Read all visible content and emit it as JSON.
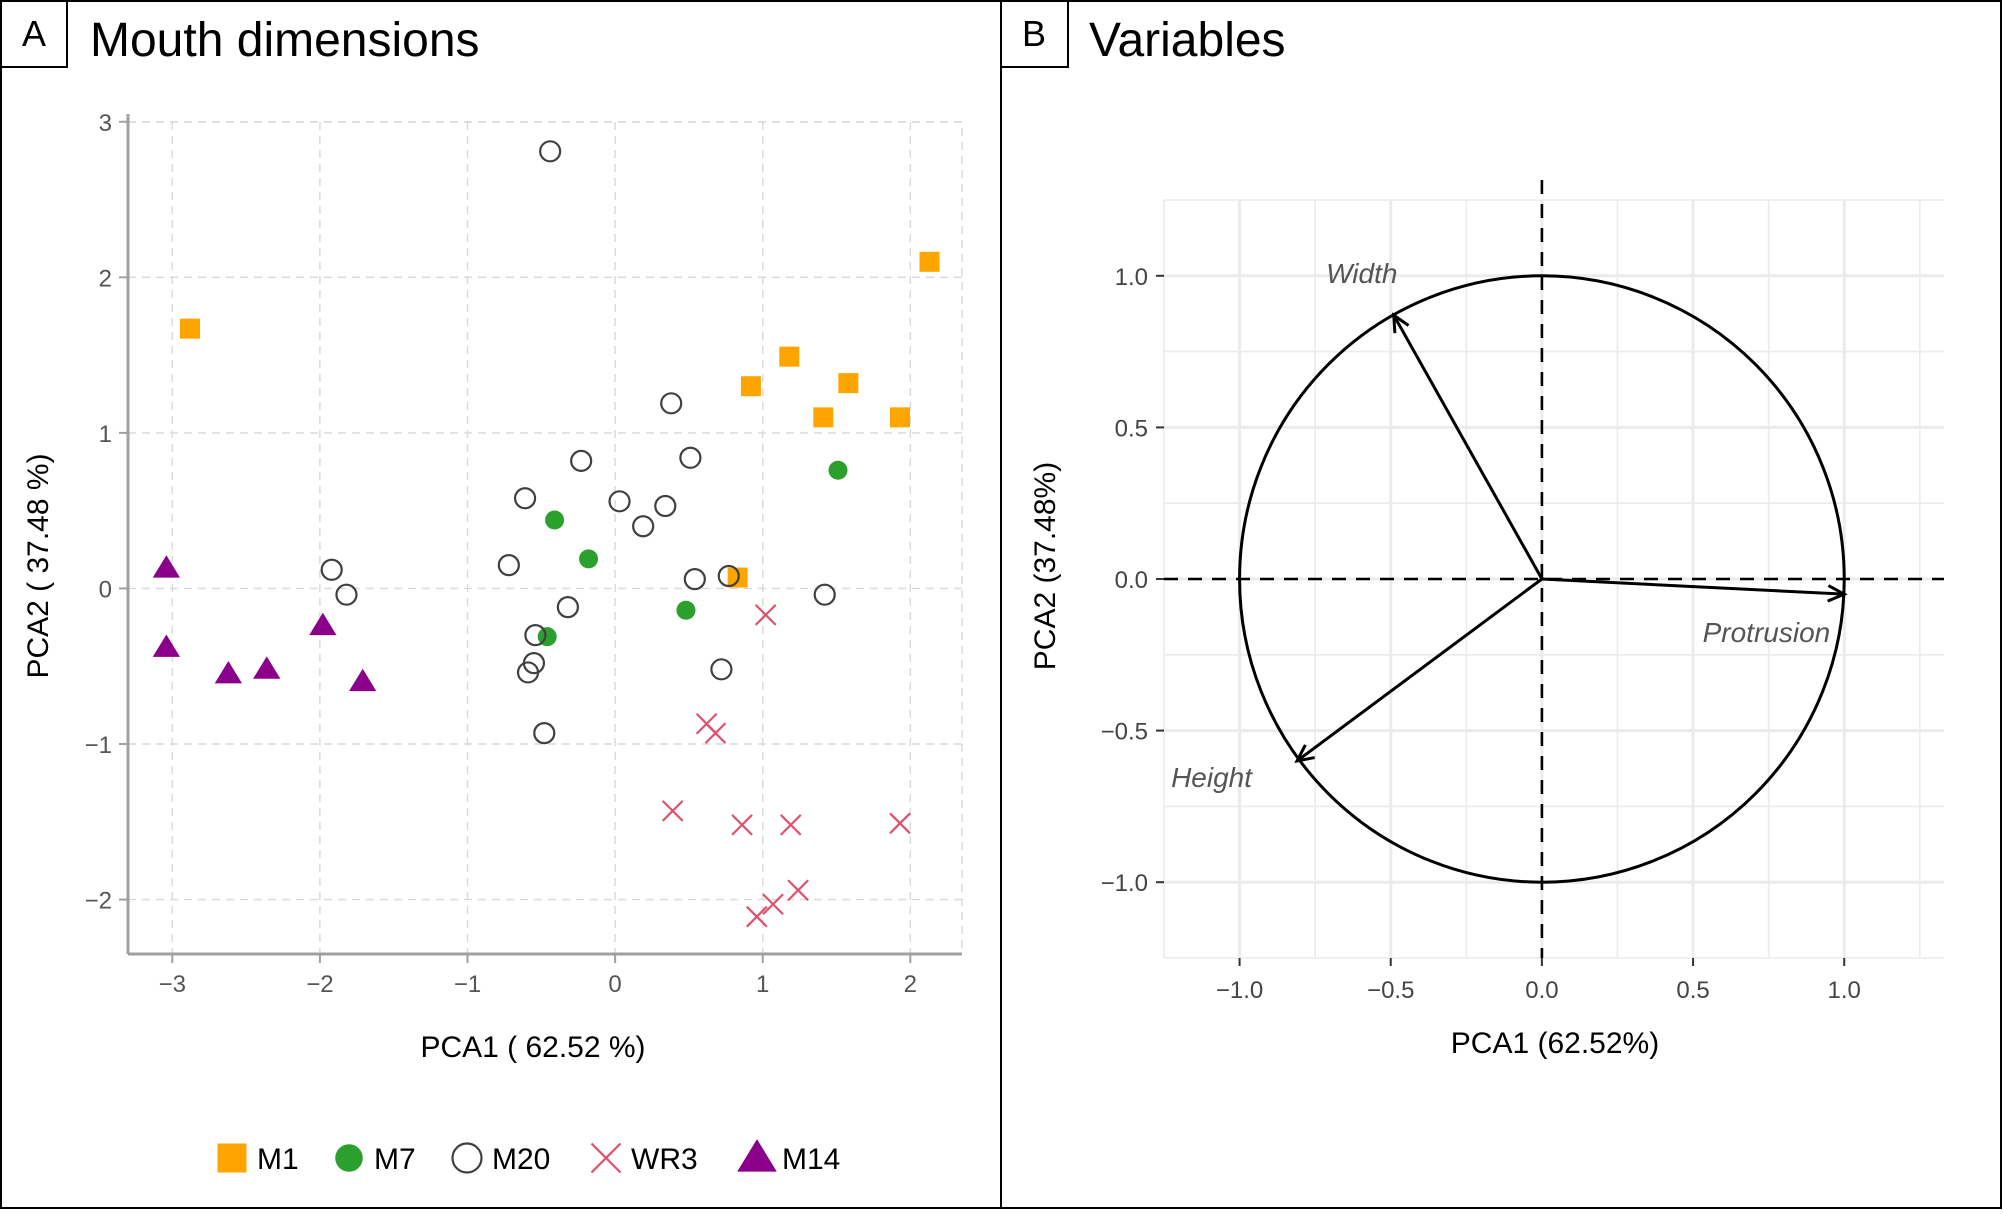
{
  "colors": {
    "M1": "#FFA500",
    "M7": "#2CA02C",
    "M20": "#404040",
    "WR3": "#E0506A",
    "M14": "#8B008B",
    "grid": "#d9d9d9",
    "axis": "#a0a0a0"
  },
  "chart_data": [
    {
      "panel_label": "A",
      "title": "Mouth dimensions",
      "type": "scatter",
      "xlabel": "PCA1 ( 62.52 %)",
      "ylabel": "PCA2 ( 37.48 %)",
      "xlim": [
        -3.3,
        2.35
      ],
      "ylim": [
        -2.35,
        3.05
      ],
      "xticks": [
        -3,
        -2,
        -1,
        0,
        1,
        2
      ],
      "yticks": [
        -2,
        -1,
        0,
        1,
        2,
        3
      ],
      "grid": "dashed",
      "legend_position": "bottom",
      "series": [
        {
          "name": "M1",
          "marker": "square",
          "color_key": "M1",
          "points": [
            [
              -2.88,
              1.67
            ],
            [
              0.92,
              1.3
            ],
            [
              1.18,
              1.49
            ],
            [
              1.41,
              1.1
            ],
            [
              1.58,
              1.32
            ],
            [
              1.93,
              1.1
            ],
            [
              2.13,
              2.1
            ],
            [
              0.83,
              0.07
            ]
          ]
        },
        {
          "name": "M7",
          "marker": "circle-filled",
          "color_key": "M7",
          "points": [
            [
              -0.41,
              0.44
            ],
            [
              -0.18,
              0.19
            ],
            [
              -0.46,
              -0.31
            ],
            [
              0.48,
              -0.14
            ],
            [
              1.51,
              0.76
            ]
          ]
        },
        {
          "name": "M20",
          "marker": "circle-open",
          "color_key": "M20",
          "points": [
            [
              -0.44,
              2.81
            ],
            [
              0.38,
              1.19
            ],
            [
              -0.23,
              0.82
            ],
            [
              0.51,
              0.84
            ],
            [
              -0.61,
              0.58
            ],
            [
              0.03,
              0.56
            ],
            [
              0.34,
              0.53
            ],
            [
              0.19,
              0.4
            ],
            [
              -0.72,
              0.15
            ],
            [
              0.54,
              0.06
            ],
            [
              0.77,
              0.08
            ],
            [
              1.42,
              -0.04
            ],
            [
              -0.32,
              -0.12
            ],
            [
              -0.54,
              -0.3
            ],
            [
              -0.55,
              -0.48
            ],
            [
              -0.59,
              -0.54
            ],
            [
              0.72,
              -0.52
            ],
            [
              -0.48,
              -0.93
            ],
            [
              -1.92,
              0.12
            ],
            [
              -1.82,
              -0.04
            ]
          ]
        },
        {
          "name": "WR3",
          "marker": "cross",
          "color_key": "WR3",
          "points": [
            [
              1.02,
              -0.17
            ],
            [
              0.62,
              -0.87
            ],
            [
              0.68,
              -0.93
            ],
            [
              0.39,
              -1.43
            ],
            [
              0.86,
              -1.52
            ],
            [
              1.19,
              -1.52
            ],
            [
              1.93,
              -1.51
            ],
            [
              1.24,
              -1.94
            ],
            [
              1.07,
              -2.03
            ],
            [
              0.96,
              -2.11
            ]
          ]
        },
        {
          "name": "M14",
          "marker": "triangle",
          "color_key": "M14",
          "points": [
            [
              -3.04,
              0.13
            ],
            [
              -3.04,
              -0.38
            ],
            [
              -2.62,
              -0.55
            ],
            [
              -2.36,
              -0.52
            ],
            [
              -1.98,
              -0.24
            ],
            [
              -1.71,
              -0.6
            ]
          ]
        }
      ]
    },
    {
      "panel_label": "B",
      "title": "Variables",
      "type": "scatter",
      "xlabel": "PCA1 (62.52%)",
      "ylabel": "PCA2 (37.48%)",
      "xlim": [
        -1.25,
        1.33
      ],
      "ylim": [
        -1.25,
        1.25
      ],
      "xticks": [
        -1.0,
        -0.5,
        0.0,
        0.5,
        1.0
      ],
      "yticks": [
        -1.0,
        -0.5,
        0.0,
        0.5,
        1.0
      ],
      "xtick_labels": [
        "−1.0",
        "−0.5",
        "0.0",
        "0.5",
        "1.0"
      ],
      "ytick_labels": [
        "−1.0",
        "−0.5",
        "0.0",
        "0.5",
        "1.0"
      ],
      "grid": "solid",
      "unit_circle": true,
      "vectors": [
        {
          "name": "Width",
          "x": -0.49,
          "y": 0.87
        },
        {
          "name": "Protrusion",
          "x": 1.0,
          "y": -0.05
        },
        {
          "name": "Height",
          "x": -0.81,
          "y": -0.6
        }
      ]
    }
  ],
  "legend": {
    "items": [
      {
        "label": "M1",
        "marker": "square",
        "color_key": "M1"
      },
      {
        "label": "M7",
        "marker": "circle-filled",
        "color_key": "M7"
      },
      {
        "label": "M20",
        "marker": "circle-open",
        "color_key": "M20"
      },
      {
        "label": "WR3",
        "marker": "cross",
        "color_key": "WR3"
      },
      {
        "label": "M14",
        "marker": "triangle",
        "color_key": "M14"
      }
    ]
  }
}
